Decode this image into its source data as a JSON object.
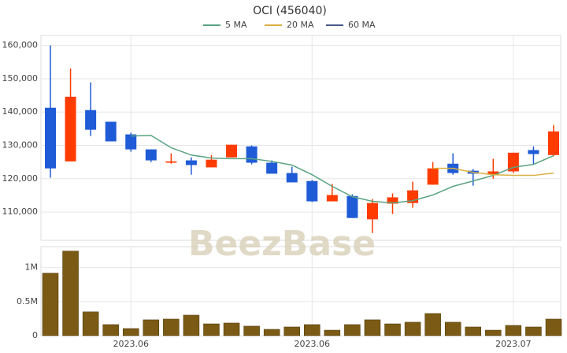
{
  "chart_data": [
    {
      "type": "candlestick",
      "title": "OCI (456040)",
      "watermark": "BeezBase",
      "up_color": "#ff3b00",
      "down_color": "#1f5bd6",
      "open": [
        141300,
        125200,
        140600,
        137100,
        133300,
        128800,
        124800,
        125500,
        123400,
        126400,
        129700,
        124800,
        121700,
        119300,
        113200,
        114800,
        107800,
        112500,
        112700,
        118200,
        124500,
        122400,
        121200,
        122200,
        128600,
        127100
      ],
      "high": [
        160000,
        153100,
        148900,
        137100,
        133800,
        128800,
        127600,
        126400,
        127100,
        130200,
        130000,
        125500,
        123600,
        119600,
        118400,
        115300,
        113900,
        115600,
        119100,
        125000,
        127600,
        122900,
        126000,
        127800,
        129700,
        136100
      ],
      "low": [
        120300,
        125200,
        132800,
        131200,
        128100,
        125000,
        124500,
        121200,
        123400,
        126400,
        124300,
        121500,
        118900,
        113000,
        113200,
        108200,
        103700,
        109400,
        111300,
        118200,
        121200,
        117900,
        120000,
        121700,
        124300,
        126700
      ],
      "close": [
        123100,
        144600,
        134700,
        131200,
        128800,
        125500,
        125200,
        124100,
        125700,
        130200,
        124800,
        121500,
        118900,
        113200,
        115100,
        108200,
        112700,
        114400,
        116500,
        123100,
        121700,
        121500,
        122200,
        127800,
        127400,
        134200
      ],
      "series": [
        {
          "name": "5 MA",
          "color": "#5aa382",
          "values": [
            null,
            null,
            null,
            null,
            132800,
            133000,
            129300,
            127100,
            126200,
            126000,
            126000,
            125200,
            124100,
            121200,
            117700,
            114600,
            113200,
            112700,
            113400,
            115100,
            117700,
            119300,
            121000,
            123400,
            124300,
            126900
          ]
        },
        {
          "name": "20 MA",
          "color": "#d9b040",
          "values": [
            null,
            null,
            null,
            null,
            null,
            null,
            null,
            null,
            null,
            null,
            null,
            null,
            null,
            null,
            null,
            null,
            null,
            null,
            null,
            123100,
            123100,
            121900,
            121200,
            121000,
            121000,
            121700
          ]
        },
        {
          "name": "60 MA",
          "color": "#4a5a8a",
          "values": [
            null,
            null,
            null,
            null,
            null,
            null,
            null,
            null,
            null,
            null,
            null,
            null,
            null,
            null,
            null,
            null,
            null,
            null,
            null,
            null,
            null,
            null,
            null,
            null,
            null,
            null
          ]
        }
      ],
      "ylim": [
        101500,
        163000
      ],
      "yticks": [
        {
          "value": 110000,
          "label": "110,000"
        },
        {
          "value": 120000,
          "label": "120,000"
        },
        {
          "value": 130000,
          "label": "130,000"
        },
        {
          "value": 140000,
          "label": "140,000"
        },
        {
          "value": 150000,
          "label": "150,000"
        },
        {
          "value": 160000,
          "label": "160,000"
        }
      ],
      "grid": true
    },
    {
      "type": "bar",
      "color": "#7a5a14",
      "categories": [
        null,
        null,
        null,
        null,
        "2023.06",
        null,
        null,
        null,
        null,
        null,
        null,
        null,
        null,
        "2023.06",
        null,
        null,
        null,
        null,
        null,
        null,
        null,
        null,
        null,
        "2023.07",
        null,
        null
      ],
      "values": [
        920000,
        1245000,
        350000,
        163000,
        105000,
        233000,
        244000,
        302000,
        174000,
        186000,
        140000,
        93000,
        128000,
        163000,
        81000,
        163000,
        233000,
        174000,
        198000,
        326000,
        198000,
        128000,
        81000,
        151000,
        128000,
        244000
      ],
      "ylim": [
        0,
        1310000
      ],
      "yticks": [
        0,
        {
          "value": 500000,
          "label": "0.5M"
        },
        {
          "value": 1000000,
          "label": "1M"
        }
      ],
      "grid": true
    }
  ]
}
